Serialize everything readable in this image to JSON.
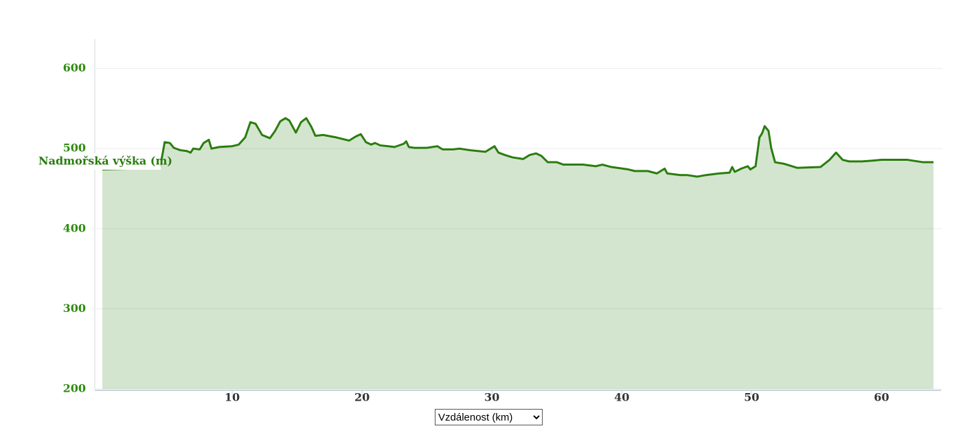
{
  "chart_data": {
    "type": "area",
    "y_label": "Nadmořská výška (m)",
    "x_label": "Vzdálenost (km)",
    "x": [
      0,
      4.4,
      4.6,
      4.8,
      5.2,
      5.5,
      6,
      6.5,
      6.8,
      7,
      7.5,
      7.8,
      8.2,
      8.4,
      9,
      10,
      10.5,
      11,
      11.4,
      11.8,
      12.3,
      12.9,
      13.3,
      13.7,
      14.1,
      14.4,
      14.9,
      15.3,
      15.7,
      16.1,
      16.4,
      17,
      18,
      19,
      19.5,
      19.9,
      20.3,
      20.7,
      21,
      21.4,
      22,
      22.5,
      23.2,
      23.4,
      23.6,
      24,
      25,
      25.8,
      26.2,
      27,
      27.5,
      28.3,
      29.5,
      30,
      30.2,
      30.5,
      31,
      31.6,
      32.4,
      32.9,
      33.4,
      33.8,
      34.3,
      35,
      35.5,
      37,
      38,
      38.5,
      39.2,
      40.5,
      41,
      42,
      42.7,
      43.3,
      43.5,
      44.5,
      45,
      45.8,
      46.5,
      47.5,
      48.3,
      48.5,
      48.7,
      49.2,
      49.7,
      49.9,
      50.3,
      50.6,
      50.8,
      51,
      51.3,
      51.5,
      51.8,
      52.5,
      53.5,
      55.3,
      56,
      56.5,
      57,
      57.5,
      58.5,
      59.3,
      60,
      62,
      63.2,
      64
    ],
    "series": [
      {
        "name": "Nadmořská výška (m)",
        "color": "#2a7d0f",
        "values": [
          474,
          476,
          490,
          508,
          507,
          501,
          498,
          497,
          495,
          500,
          499,
          507,
          511,
          500,
          502,
          503,
          505,
          514,
          533,
          531,
          517,
          513,
          522,
          534,
          538,
          535,
          520,
          533,
          538,
          527,
          516,
          517,
          514,
          510,
          515,
          518,
          508,
          505,
          507,
          504,
          503,
          502,
          506,
          509,
          502,
          501,
          501,
          503,
          499,
          499,
          500,
          498,
          496,
          501,
          503,
          495,
          492,
          489,
          487,
          492,
          494,
          491,
          483,
          483,
          480,
          480,
          478,
          480,
          477,
          474,
          472,
          472,
          469,
          475,
          469,
          467,
          467,
          465,
          467,
          469,
          470,
          477,
          471,
          475,
          478,
          474,
          478,
          514,
          519,
          528,
          522,
          501,
          483,
          481,
          476,
          477,
          486,
          495,
          486,
          484,
          484,
          485,
          486,
          486,
          483,
          483
        ]
      }
    ],
    "xlim": [
      0,
      64
    ],
    "xticks": [
      10,
      20,
      30,
      40,
      50,
      60
    ],
    "ylim": [
      200,
      637
    ],
    "yticks": [
      200,
      300,
      400,
      500,
      600
    ],
    "grid": true
  }
}
